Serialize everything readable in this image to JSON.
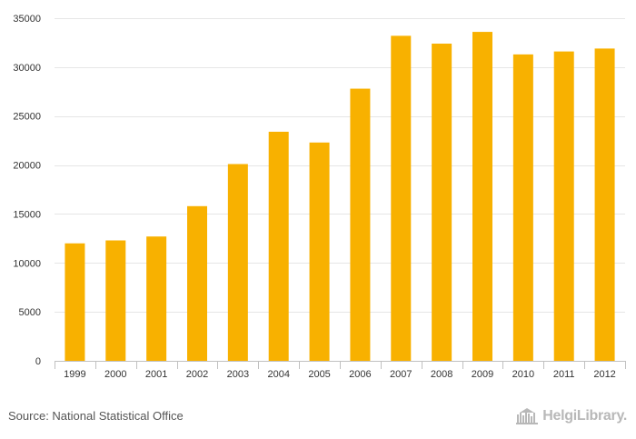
{
  "chart_data": {
    "type": "bar",
    "title": "",
    "xlabel": "",
    "ylabel": "",
    "categories": [
      "1999",
      "2000",
      "2001",
      "2002",
      "2003",
      "2004",
      "2005",
      "2006",
      "2007",
      "2008",
      "2009",
      "2010",
      "2011",
      "2012"
    ],
    "series": [
      {
        "name": "",
        "values": [
          12000,
          12300,
          12700,
          15800,
          20100,
          23400,
          22300,
          27800,
          33200,
          32400,
          33600,
          31300,
          31600,
          31900
        ]
      }
    ],
    "ylim": [
      0,
      35000
    ],
    "yticks": [
      0,
      5000,
      10000,
      15000,
      20000,
      25000,
      30000,
      35000
    ],
    "grid": true,
    "legend": "none"
  },
  "colors": {
    "bar": "#f8b100",
    "grid": "#e6e6e6",
    "axis": "#c0c0c0"
  },
  "footer": {
    "source": "Source: National Statistical Office",
    "brand": "HelgiLibrary."
  }
}
